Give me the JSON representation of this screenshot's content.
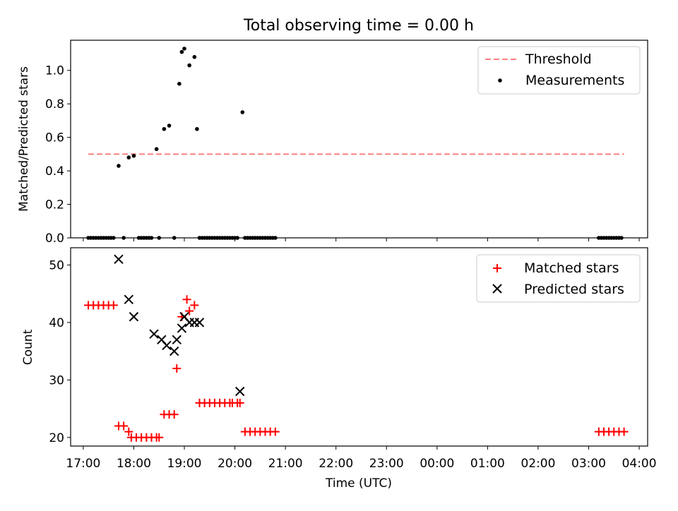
{
  "title": "Total observing time = 0.00 h",
  "colors": {
    "threshold": "#ff7f7f",
    "measurements": "#000000",
    "matched": "#ff0000",
    "predicted": "#000000"
  },
  "chart_data": [
    {
      "type": "scatter",
      "ylabel": "Matched/Predicted stars",
      "ylim": [
        0,
        1.18
      ],
      "yticks": [
        0.0,
        0.2,
        0.4,
        0.6,
        0.8,
        1.0
      ],
      "ytick_labels": [
        "0.0",
        "0.2",
        "0.4",
        "0.6",
        "0.8",
        "1.0"
      ],
      "legend_position": "top-right",
      "legend": [
        "Threshold",
        "Measurements"
      ],
      "threshold": {
        "name": "Threshold",
        "y": 0.5,
        "x_start": "17:06",
        "x_end": "03:42",
        "style": "dashed"
      },
      "series": [
        {
          "name": "Measurements",
          "x": [
            "17:06",
            "17:09",
            "17:12",
            "17:15",
            "17:18",
            "17:21",
            "17:24",
            "17:27",
            "17:30",
            "17:33",
            "17:36",
            "17:42",
            "17:48",
            "17:54",
            "18:00",
            "18:06",
            "18:09",
            "18:12",
            "18:15",
            "18:18",
            "18:21",
            "18:27",
            "18:30",
            "18:36",
            "18:42",
            "18:48",
            "18:54",
            "18:57",
            "19:00",
            "19:06",
            "19:12",
            "19:15",
            "19:18",
            "19:21",
            "19:24",
            "19:27",
            "19:30",
            "19:33",
            "19:36",
            "19:39",
            "19:42",
            "19:45",
            "19:48",
            "19:51",
            "19:54",
            "19:57",
            "20:00",
            "20:03",
            "20:09",
            "20:12",
            "20:15",
            "20:18",
            "20:21",
            "20:24",
            "20:27",
            "20:30",
            "20:33",
            "20:36",
            "20:39",
            "20:42",
            "20:45",
            "20:48",
            "03:12",
            "03:15",
            "03:18",
            "03:21",
            "03:24",
            "03:27",
            "03:30",
            "03:33",
            "03:36",
            "03:39"
          ],
          "y": [
            0,
            0,
            0,
            0,
            0,
            0,
            0,
            0,
            0,
            0,
            0,
            0.43,
            0,
            0.48,
            0.49,
            0,
            0,
            0,
            0,
            0,
            0,
            0.53,
            0,
            0.65,
            0.67,
            0,
            0.92,
            1.11,
            1.13,
            1.03,
            1.08,
            0.65,
            0,
            0,
            0,
            0,
            0,
            0,
            0,
            0,
            0,
            0,
            0,
            0,
            0,
            0,
            0,
            0,
            0.75,
            0,
            0,
            0,
            0,
            0,
            0,
            0,
            0,
            0,
            0,
            0,
            0,
            0,
            0,
            0,
            0,
            0,
            0,
            0,
            0,
            0,
            0,
            0
          ]
        }
      ]
    },
    {
      "type": "scatter",
      "xlabel": "Time (UTC)",
      "ylabel": "Count",
      "ylim": [
        18.5,
        53
      ],
      "yticks": [
        20,
        30,
        40,
        50
      ],
      "ytick_labels": [
        "20",
        "30",
        "40",
        "50"
      ],
      "x_range": [
        "16:45",
        "04:10"
      ],
      "xtick_labels": [
        "17:00",
        "18:00",
        "19:00",
        "20:00",
        "21:00",
        "22:00",
        "23:00",
        "00:00",
        "01:00",
        "02:00",
        "03:00",
        "04:00"
      ],
      "legend_position": "top-right",
      "legend": [
        "Matched stars",
        "Predicted stars"
      ],
      "series": [
        {
          "name": "Matched stars",
          "marker": "+",
          "x": [
            "17:06",
            "17:12",
            "17:18",
            "17:24",
            "17:30",
            "17:36",
            "17:42",
            "17:48",
            "17:54",
            "17:57",
            "18:03",
            "18:09",
            "18:15",
            "18:21",
            "18:27",
            "18:30",
            "18:36",
            "18:42",
            "18:48",
            "18:51",
            "18:57",
            "19:03",
            "19:06",
            "19:12",
            "19:18",
            "19:24",
            "19:30",
            "19:36",
            "19:42",
            "19:48",
            "19:54",
            "19:57",
            "20:03",
            "20:06",
            "20:12",
            "20:18",
            "20:24",
            "20:30",
            "20:36",
            "20:42",
            "20:48",
            "03:12",
            "03:18",
            "03:24",
            "03:30",
            "03:36",
            "03:42"
          ],
          "y": [
            43,
            43,
            43,
            43,
            43,
            43,
            22,
            22,
            21,
            20,
            20,
            20,
            20,
            20,
            20,
            20,
            24,
            24,
            24,
            32,
            41,
            44,
            42,
            43,
            26,
            26,
            26,
            26,
            26,
            26,
            26,
            26,
            26,
            26,
            21,
            21,
            21,
            21,
            21,
            21,
            21,
            21,
            21,
            21,
            21,
            21,
            21
          ]
        },
        {
          "name": "Predicted stars",
          "marker": "x",
          "x": [
            "17:42",
            "17:54",
            "18:00",
            "18:24",
            "18:33",
            "18:39",
            "18:48",
            "18:51",
            "18:57",
            "19:00",
            "19:06",
            "19:12",
            "19:18",
            "20:06"
          ],
          "y": [
            51,
            44,
            41,
            38,
            37,
            36,
            35,
            37,
            39,
            41,
            40,
            40,
            40,
            28
          ]
        }
      ]
    }
  ]
}
